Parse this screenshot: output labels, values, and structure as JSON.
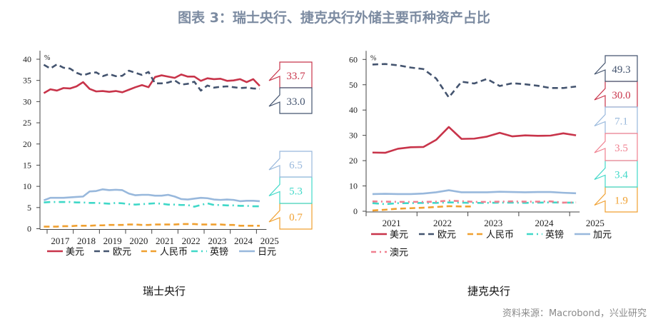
{
  "title": "图表 3：瑞士央行、捷克央行外储主要币种资产占比",
  "source": "资料来源：Macrobond，兴业研究",
  "colors": {
    "美元": "#c8344a",
    "欧元": "#44546f",
    "人民币": "#f0a030",
    "英镑": "#40d8c8",
    "日元": "#98b8dc",
    "加元": "#98b8dc",
    "澳元": "#f08090"
  },
  "chart_data": [
    {
      "type": "line",
      "title": "瑞士央行",
      "unit": "%",
      "ylim": [
        0,
        40
      ],
      "yticks": [
        "0",
        "5",
        "10",
        "15",
        "20",
        "25",
        "30",
        "35",
        "40"
      ],
      "xticks": [
        "2017",
        "2018",
        "2019",
        "2020",
        "2021",
        "2022",
        "2023",
        "2024",
        "2025"
      ],
      "x": [
        "2016Q4",
        "2017Q1",
        "2017Q2",
        "2017Q3",
        "2017Q4",
        "2018Q1",
        "2018Q2",
        "2018Q3",
        "2018Q4",
        "2019Q1",
        "2019Q2",
        "2019Q3",
        "2019Q4",
        "2020Q1",
        "2020Q2",
        "2020Q3",
        "2020Q4",
        "2021Q1",
        "2021Q2",
        "2021Q3",
        "2021Q4",
        "2022Q1",
        "2022Q2",
        "2022Q3",
        "2022Q4",
        "2023Q1",
        "2023Q2",
        "2023Q3",
        "2023Q4",
        "2024Q1",
        "2024Q2",
        "2024Q3",
        "2024Q4",
        "2025Q1"
      ],
      "legend_position": "bottom",
      "series": [
        {
          "name": "美元",
          "values": [
            32.0,
            32.9,
            32.6,
            33.2,
            33.1,
            33.6,
            34.6,
            33.0,
            32.4,
            32.5,
            32.3,
            32.5,
            32.2,
            32.8,
            33.4,
            33.9,
            33.4,
            35.8,
            36.2,
            35.9,
            35.6,
            36.4,
            35.9,
            35.9,
            34.9,
            35.5,
            35.3,
            35.4,
            34.9,
            35.0,
            35.3,
            34.6,
            35.3,
            33.7
          ],
          "end_label": "33.7"
        },
        {
          "name": "欧元",
          "values": [
            38.7,
            37.8,
            38.8,
            38.0,
            37.8,
            36.8,
            36.2,
            36.7,
            36.9,
            36.0,
            36.5,
            36.0,
            36.1,
            37.3,
            36.8,
            36.3,
            37.0,
            34.3,
            34.3,
            34.5,
            35.0,
            34.0,
            34.2,
            34.7,
            32.6,
            33.8,
            33.3,
            33.5,
            33.6,
            33.4,
            33.2,
            33.3,
            33.1,
            33.0
          ],
          "end_label": "33.0"
        },
        {
          "name": "人民币",
          "values": [
            0.5,
            0.5,
            0.5,
            0.6,
            0.6,
            0.7,
            0.7,
            0.7,
            0.8,
            0.8,
            0.9,
            0.9,
            0.9,
            1.0,
            1.0,
            0.9,
            0.9,
            1.0,
            1.0,
            1.0,
            1.0,
            1.1,
            1.1,
            1.1,
            1.0,
            1.0,
            1.0,
            1.0,
            0.9,
            0.9,
            0.7,
            0.7,
            0.7,
            0.7
          ],
          "end_label": "0.7"
        },
        {
          "name": "英镑",
          "values": [
            6.2,
            6.3,
            6.3,
            6.3,
            6.3,
            6.2,
            6.2,
            6.1,
            6.1,
            6.0,
            5.9,
            6.1,
            6.0,
            5.8,
            5.7,
            5.8,
            5.9,
            6.0,
            5.9,
            5.7,
            5.7,
            5.6,
            5.6,
            5.2,
            5.6,
            6.0,
            5.6,
            5.6,
            5.5,
            5.5,
            5.4,
            5.4,
            5.3,
            5.3
          ],
          "end_label": "5.3"
        },
        {
          "name": "日元",
          "values": [
            6.7,
            7.3,
            7.3,
            7.3,
            7.4,
            7.5,
            7.6,
            8.8,
            8.9,
            9.3,
            9.1,
            9.2,
            9.1,
            8.3,
            7.9,
            8.0,
            8.0,
            7.8,
            7.8,
            8.0,
            7.6,
            7.0,
            6.9,
            7.1,
            7.3,
            7.2,
            6.9,
            6.8,
            6.9,
            6.8,
            6.5,
            6.6,
            6.6,
            6.5
          ],
          "end_label": "6.5"
        }
      ]
    },
    {
      "type": "line",
      "title": "捷克央行",
      "unit": "%",
      "ylim": [
        0,
        60
      ],
      "yticks": [
        "0",
        "10",
        "20",
        "30",
        "40",
        "50",
        "60"
      ],
      "xticks": [
        "2021",
        "2022",
        "2023",
        "2024",
        "2025"
      ],
      "x": [
        "2021Q1",
        "2021Q2",
        "2021Q3",
        "2021Q4",
        "2022Q1",
        "2022Q2",
        "2022Q3",
        "2022Q4",
        "2023Q1",
        "2023Q2",
        "2023Q3",
        "2023Q4",
        "2024Q1",
        "2024Q2",
        "2024Q3",
        "2024Q4",
        "2025Q1"
      ],
      "legend_position": "bottom",
      "series": [
        {
          "name": "美元",
          "values": [
            23.2,
            23.1,
            24.7,
            25.3,
            25.4,
            28.2,
            33.3,
            28.6,
            28.7,
            29.5,
            31.0,
            29.6,
            30.0,
            29.8,
            29.9,
            30.8,
            30.0
          ],
          "end_label": "30.0"
        },
        {
          "name": "欧元",
          "values": [
            58.0,
            58.2,
            57.7,
            56.8,
            56.2,
            52.5,
            45.0,
            51.2,
            50.5,
            52.3,
            49.5,
            50.6,
            50.2,
            49.6,
            48.7,
            48.7,
            49.3
          ],
          "end_label": "49.3"
        },
        {
          "name": "人民币",
          "values": [
            0.3,
            0.6,
            1.0,
            1.2,
            1.4,
            1.7,
            2.0,
            1.9,
            1.9,
            null,
            null,
            null,
            null,
            null,
            null,
            null,
            null
          ],
          "end_label": "1.9"
        },
        {
          "name": "英镑",
          "values": [
            3.2,
            2.8,
            3.2,
            3.2,
            3.3,
            3.3,
            3.5,
            3.4,
            3.3,
            3.3,
            3.4,
            3.4,
            3.3,
            3.4,
            3.5,
            3.4,
            3.4
          ],
          "end_label": "3.4"
        },
        {
          "name": "加元",
          "values": [
            6.8,
            6.9,
            6.8,
            6.8,
            7.0,
            7.5,
            8.3,
            7.5,
            7.5,
            7.5,
            7.7,
            7.6,
            7.5,
            7.6,
            7.6,
            7.3,
            7.1
          ],
          "end_label": "7.1"
        },
        {
          "name": "澳元",
          "values": [
            3.9,
            3.8,
            3.7,
            3.7,
            3.7,
            3.8,
            4.2,
            4.0,
            3.7,
            3.7,
            3.8,
            3.9,
            3.8,
            3.8,
            3.9,
            3.4,
            3.5
          ],
          "end_label": "3.5"
        }
      ]
    }
  ]
}
